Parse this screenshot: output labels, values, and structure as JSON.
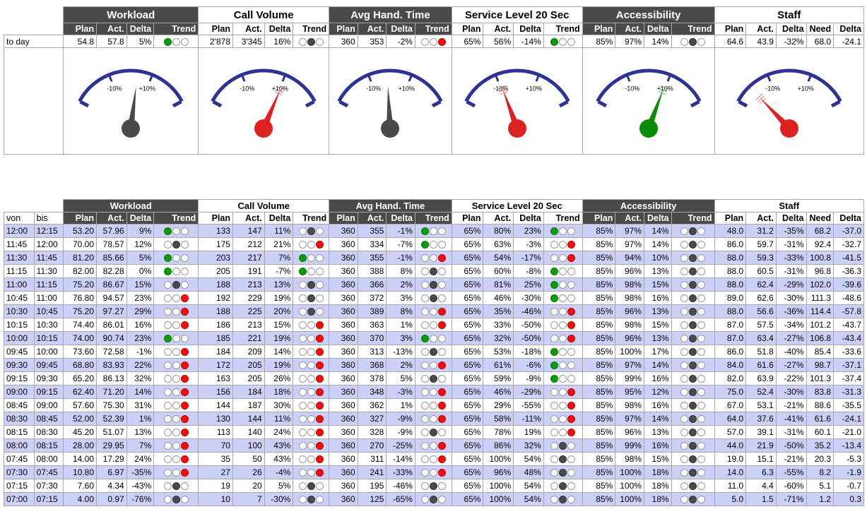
{
  "groups": [
    "Workload",
    "Call Volume",
    "Avg Hand. Time",
    "Service Level 20 Sec",
    "Accessibility",
    "Staff"
  ],
  "subheaders": {
    "standard": [
      "Plan",
      "Act.",
      "Delta",
      "Trend"
    ],
    "staff": [
      "Plan",
      "Act.",
      "Delta",
      "Need",
      "Delta"
    ],
    "von": "von",
    "bis": "bis"
  },
  "today": {
    "label": "to day",
    "workload": [
      "54.8",
      "57.8",
      "5%"
    ],
    "workload_trend": "g",
    "callvol": [
      "2'878",
      "3'345",
      "16%"
    ],
    "callvol_trend": "k",
    "aht": [
      "360",
      "353",
      "-2%"
    ],
    "aht_trend": "r",
    "sl": [
      "65%",
      "56%",
      "-14%"
    ],
    "sl_trend": "g",
    "acc": [
      "85%",
      "97%",
      "14%"
    ],
    "acc_trend": "k",
    "staff": [
      "64.6",
      "43.9",
      "-32%",
      "68.0",
      "-24.1"
    ]
  },
  "gauges": {
    "minus_label": "-10%",
    "plus_label": "+10%",
    "items": [
      {
        "name": "workload",
        "value": 5,
        "color": "#4a4a4a"
      },
      {
        "name": "callvol",
        "value": 16,
        "color": "#dd2222"
      },
      {
        "name": "aht",
        "value": -2,
        "color": "#4a4a4a"
      },
      {
        "name": "sl",
        "value": -14,
        "color": "#dd2222"
      },
      {
        "name": "acc",
        "value": 14,
        "color": "#0a8a0a"
      },
      {
        "name": "staff",
        "value": -32,
        "color": "#dd2222"
      }
    ]
  },
  "rows": [
    [
      "12:00",
      "12:15",
      "53.20",
      "57.96",
      "9%",
      "g",
      "133",
      "147",
      "11%",
      "k",
      "360",
      "355",
      "-1%",
      "g",
      "65%",
      "80%",
      "23%",
      "g",
      "85%",
      "97%",
      "14%",
      "k",
      "48.0",
      "31.2",
      "-35%",
      "68.2",
      "-37.0"
    ],
    [
      "11:45",
      "12:00",
      "70.00",
      "78.57",
      "12%",
      "k",
      "175",
      "212",
      "21%",
      "r",
      "360",
      "334",
      "-7%",
      "g",
      "65%",
      "63%",
      "-3%",
      "r",
      "85%",
      "97%",
      "14%",
      "k",
      "86.0",
      "59.7",
      "-31%",
      "92.4",
      "-32.7"
    ],
    [
      "11:30",
      "11:45",
      "81.20",
      "85.66",
      "5%",
      "g",
      "203",
      "217",
      "7%",
      "g",
      "360",
      "355",
      "-1%",
      "r",
      "65%",
      "54%",
      "-17%",
      "r",
      "85%",
      "94%",
      "10%",
      "k",
      "88.0",
      "59.3",
      "-33%",
      "100.8",
      "-41.5"
    ],
    [
      "11:15",
      "11:30",
      "82.00",
      "82.28",
      "0%",
      "g",
      "205",
      "191",
      "-7%",
      "g",
      "360",
      "388",
      "8%",
      "k",
      "65%",
      "60%",
      "-8%",
      "g",
      "85%",
      "96%",
      "13%",
      "k",
      "88.0",
      "60.5",
      "-31%",
      "96.8",
      "-36.3"
    ],
    [
      "11:00",
      "11:15",
      "75.20",
      "86.67",
      "15%",
      "k",
      "188",
      "213",
      "13%",
      "k",
      "360",
      "366",
      "2%",
      "k",
      "65%",
      "81%",
      "25%",
      "g",
      "85%",
      "98%",
      "15%",
      "k",
      "88.0",
      "62.4",
      "-29%",
      "102.0",
      "-39.6"
    ],
    [
      "10:45",
      "11:00",
      "76.80",
      "94.57",
      "23%",
      "r",
      "192",
      "229",
      "19%",
      "k",
      "360",
      "372",
      "3%",
      "k",
      "65%",
      "46%",
      "-30%",
      "g",
      "85%",
      "98%",
      "16%",
      "k",
      "89.0",
      "62.6",
      "-30%",
      "111.3",
      "-48.6"
    ],
    [
      "10:30",
      "10:45",
      "75.20",
      "97.27",
      "29%",
      "r",
      "188",
      "225",
      "20%",
      "k",
      "360",
      "389",
      "8%",
      "r",
      "65%",
      "35%",
      "-46%",
      "r",
      "85%",
      "96%",
      "13%",
      "k",
      "88.0",
      "56.6",
      "-36%",
      "114.4",
      "-57.8"
    ],
    [
      "10:15",
      "10:30",
      "74.40",
      "86.01",
      "16%",
      "r",
      "186",
      "213",
      "15%",
      "r",
      "360",
      "363",
      "1%",
      "r",
      "65%",
      "33%",
      "-50%",
      "r",
      "85%",
      "98%",
      "15%",
      "k",
      "87.0",
      "57.5",
      "-34%",
      "101.2",
      "-43.7"
    ],
    [
      "10:00",
      "10:15",
      "74.00",
      "90.74",
      "23%",
      "g",
      "185",
      "221",
      "19%",
      "r",
      "360",
      "370",
      "3%",
      "g",
      "65%",
      "32%",
      "-50%",
      "r",
      "85%",
      "96%",
      "13%",
      "k",
      "87.0",
      "63.4",
      "-27%",
      "106.8",
      "-43.4"
    ],
    [
      "09:45",
      "10:00",
      "73.60",
      "72.58",
      "-1%",
      "r",
      "184",
      "209",
      "14%",
      "r",
      "360",
      "313",
      "-13%",
      "k",
      "65%",
      "53%",
      "-18%",
      "g",
      "85%",
      "100%",
      "17%",
      "k",
      "86.0",
      "51.8",
      "-40%",
      "85.4",
      "-33.6"
    ],
    [
      "09:30",
      "09:45",
      "68.80",
      "83.93",
      "22%",
      "r",
      "172",
      "205",
      "19%",
      "r",
      "360",
      "368",
      "2%",
      "r",
      "65%",
      "61%",
      "-6%",
      "g",
      "85%",
      "97%",
      "14%",
      "k",
      "84.0",
      "61.6",
      "-27%",
      "98.7",
      "-37.1"
    ],
    [
      "09:15",
      "09:30",
      "65.20",
      "86.13",
      "32%",
      "r",
      "163",
      "205",
      "26%",
      "r",
      "360",
      "378",
      "5%",
      "k",
      "65%",
      "59%",
      "-9%",
      "g",
      "85%",
      "99%",
      "16%",
      "k",
      "82.0",
      "63.9",
      "-22%",
      "101.3",
      "-37.4"
    ],
    [
      "09:00",
      "09:15",
      "62.40",
      "71.20",
      "14%",
      "r",
      "156",
      "184",
      "18%",
      "r",
      "360",
      "348",
      "-3%",
      "r",
      "65%",
      "46%",
      "-29%",
      "r",
      "85%",
      "95%",
      "12%",
      "k",
      "75.0",
      "52.4",
      "-30%",
      "83.8",
      "-31.3"
    ],
    [
      "08:45",
      "09:00",
      "57.60",
      "75.30",
      "31%",
      "r",
      "144",
      "187",
      "30%",
      "r",
      "360",
      "362",
      "1%",
      "r",
      "65%",
      "29%",
      "-55%",
      "r",
      "85%",
      "98%",
      "16%",
      "k",
      "67.0",
      "53.1",
      "-21%",
      "88.6",
      "-35.5"
    ],
    [
      "08:30",
      "08:45",
      "52.00",
      "52.39",
      "1%",
      "r",
      "130",
      "144",
      "11%",
      "r",
      "360",
      "327",
      "-9%",
      "r",
      "65%",
      "58%",
      "-11%",
      "r",
      "85%",
      "97%",
      "14%",
      "k",
      "64.0",
      "37.6",
      "-41%",
      "61.6",
      "-24.1"
    ],
    [
      "08:15",
      "08:30",
      "45.20",
      "51.07",
      "13%",
      "r",
      "113",
      "140",
      "24%",
      "r",
      "360",
      "328",
      "-9%",
      "k",
      "65%",
      "78%",
      "19%",
      "r",
      "85%",
      "96%",
      "13%",
      "k",
      "57.0",
      "39.1",
      "-31%",
      "60.1",
      "-21.0"
    ],
    [
      "08:00",
      "08:15",
      "28.00",
      "29.95",
      "7%",
      "r",
      "70",
      "100",
      "43%",
      "r",
      "360",
      "270",
      "-25%",
      "r",
      "65%",
      "86%",
      "32%",
      "k",
      "85%",
      "99%",
      "16%",
      "k",
      "44.0",
      "21.9",
      "-50%",
      "35.2",
      "-13.4"
    ],
    [
      "07:45",
      "08:00",
      "14.00",
      "17.29",
      "24%",
      "r",
      "35",
      "50",
      "43%",
      "r",
      "360",
      "311",
      "-14%",
      "r",
      "65%",
      "100%",
      "54%",
      "k",
      "85%",
      "98%",
      "15%",
      "k",
      "19.0",
      "15.1",
      "-21%",
      "20.3",
      "-5.3"
    ],
    [
      "07:30",
      "07:45",
      "10.80",
      "6.97",
      "-35%",
      "r",
      "27",
      "26",
      "-4%",
      "r",
      "360",
      "241",
      "-33%",
      "r",
      "65%",
      "96%",
      "48%",
      "k",
      "85%",
      "100%",
      "18%",
      "k",
      "14.0",
      "6.3",
      "-55%",
      "8.2",
      "-1.9"
    ],
    [
      "07:15",
      "07:30",
      "7.60",
      "4.34",
      "-43%",
      "k",
      "19",
      "20",
      "5%",
      "k",
      "360",
      "195",
      "-46%",
      "k",
      "65%",
      "100%",
      "54%",
      "k",
      "85%",
      "100%",
      "18%",
      "k",
      "11.0",
      "4.4",
      "-60%",
      "5.1",
      "-0.7"
    ],
    [
      "07:00",
      "07:15",
      "4.00",
      "0.97",
      "-76%",
      "k",
      "10",
      "7",
      "-30%",
      "k",
      "360",
      "125",
      "-65%",
      "k",
      "65%",
      "100%",
      "54%",
      "k",
      "85%",
      "100%",
      "18%",
      "k",
      "5.0",
      "1.5",
      "-71%",
      "1.2",
      "0.3"
    ]
  ]
}
